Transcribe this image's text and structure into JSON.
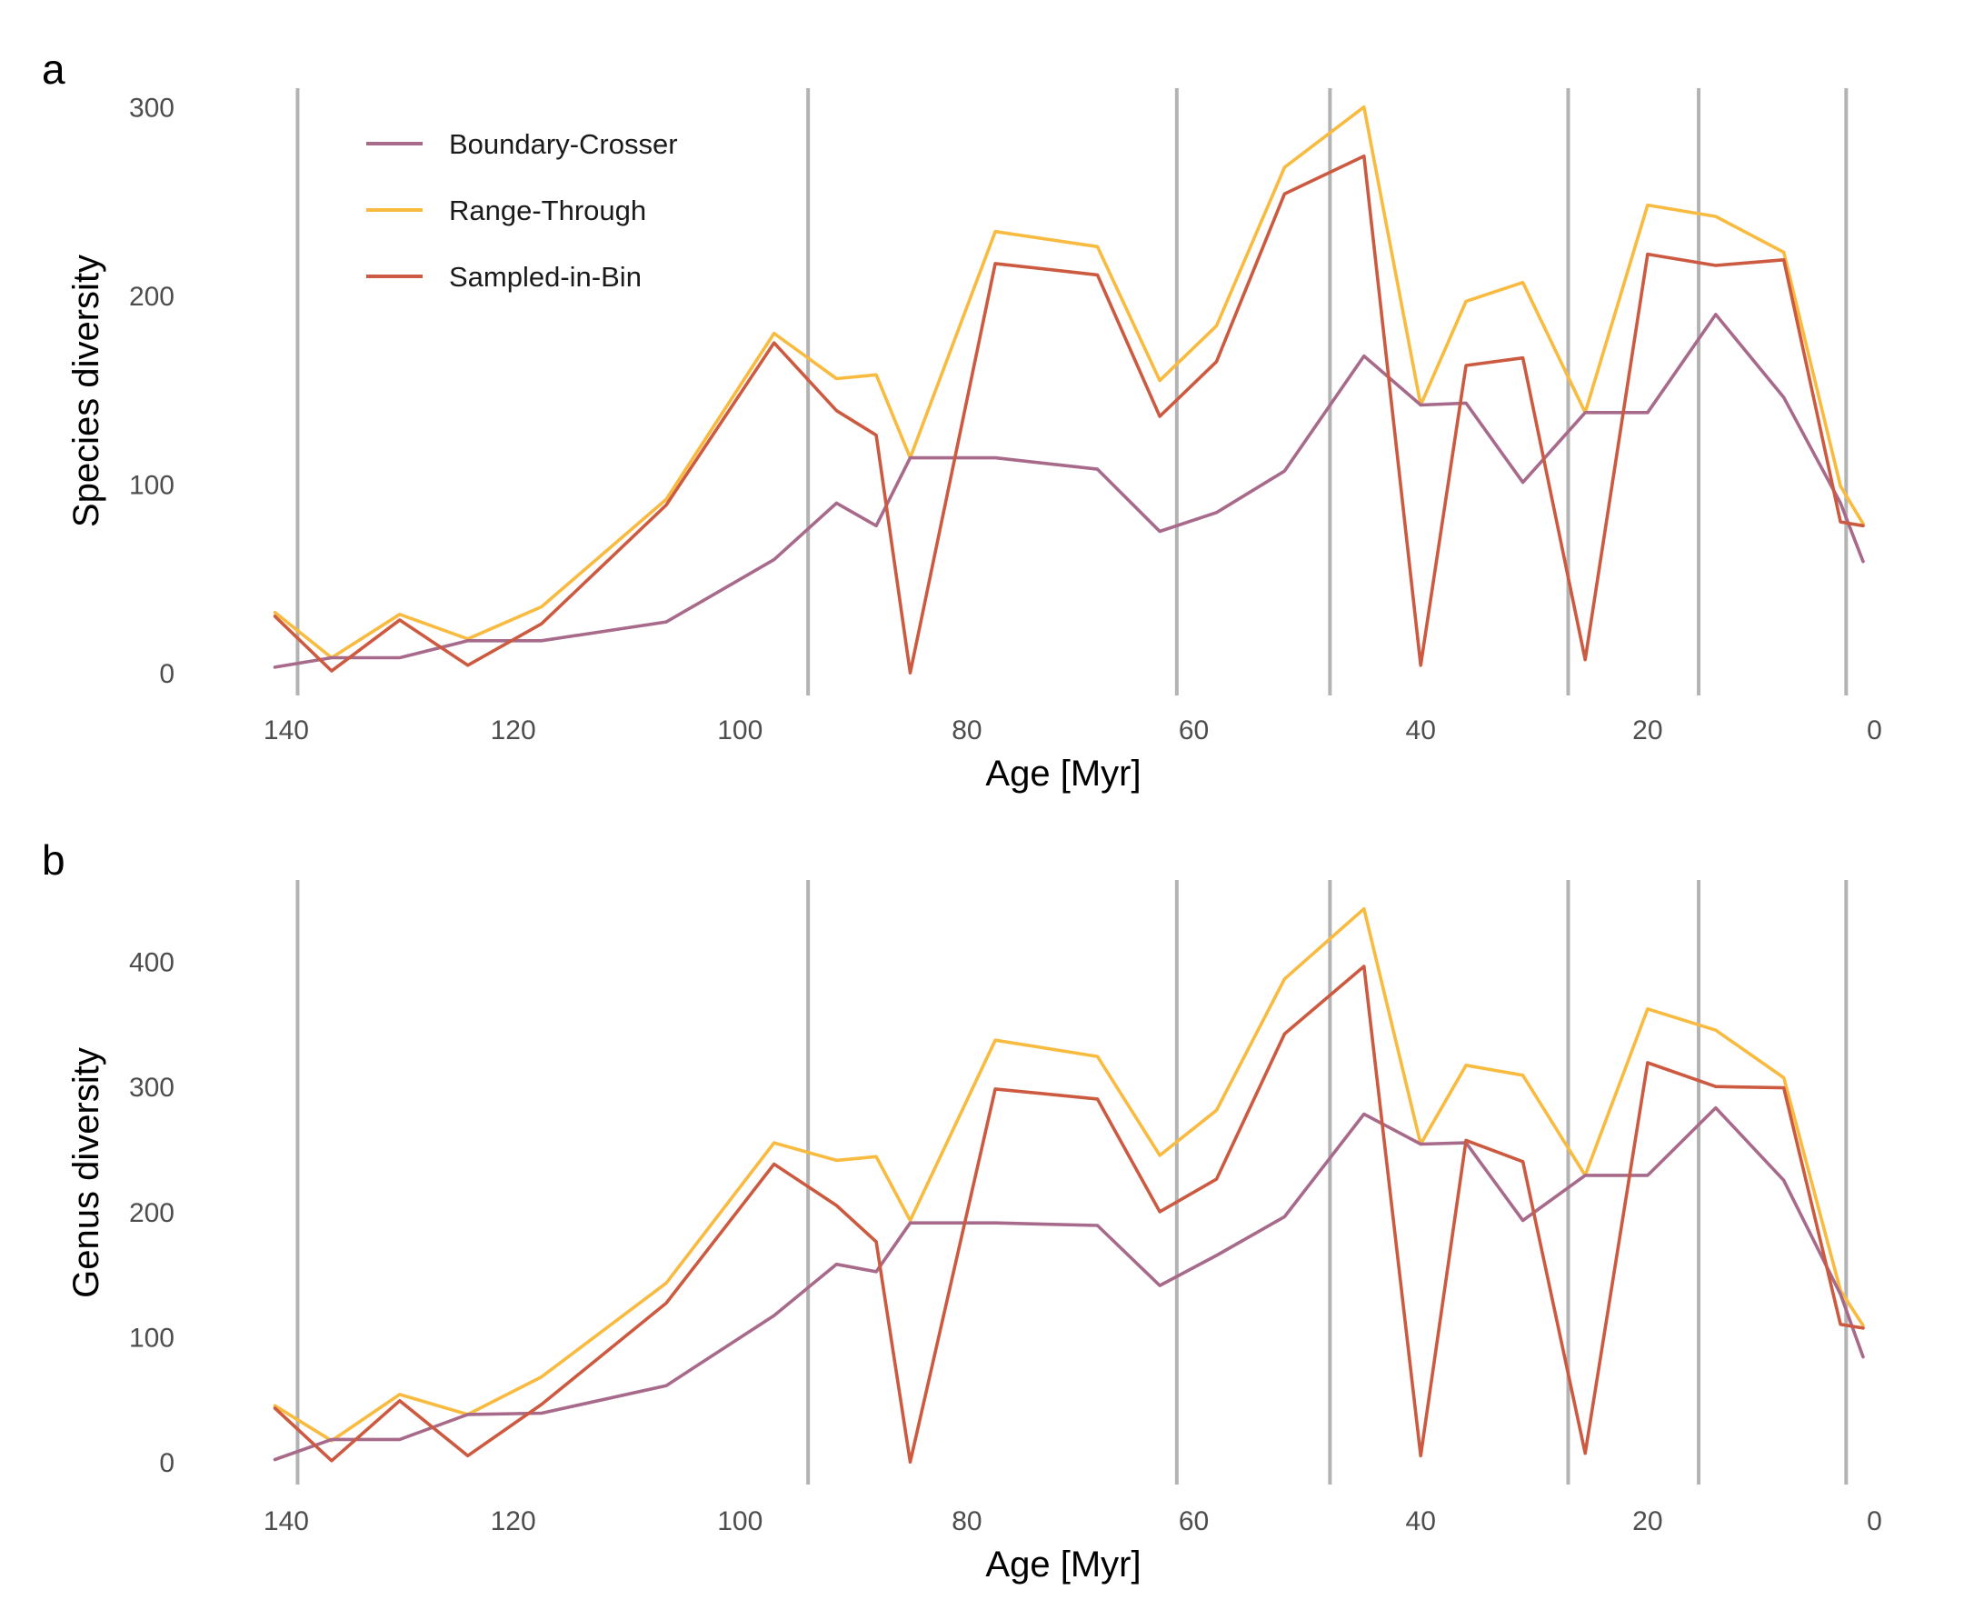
{
  "colors": {
    "boundary_crosser": "#a86a8a",
    "range_through": "#f8bb3f",
    "sampled_in_bin": "#cc5a40",
    "boundary_lines": "#b3b3b3"
  },
  "legend": [
    {
      "key": "bc",
      "label": "Boundary-Crosser"
    },
    {
      "key": "rt",
      "label": "Range-Through"
    },
    {
      "key": "sib",
      "label": "Sampled-in-Bin"
    }
  ],
  "chart_data": [
    {
      "type": "line",
      "panel_label": "a",
      "xlabel": "Age [Myr]",
      "ylabel": "Species diversity",
      "xlim": [
        142,
        -1
      ],
      "ylim": [
        -12,
        310
      ],
      "x_ticks": [
        140,
        120,
        100,
        80,
        60,
        40,
        20,
        0
      ],
      "y_ticks": [
        0,
        100,
        200,
        300
      ],
      "vertical_boundaries": [
        139,
        94,
        61.5,
        48,
        27,
        15.5,
        2.5
      ],
      "legend_position": "top-left",
      "grid": false,
      "x": [
        141,
        136,
        130,
        124,
        117.5,
        106.5,
        97,
        91.5,
        88,
        85,
        77.5,
        68.5,
        63,
        58,
        52,
        45,
        40,
        36,
        31,
        25.5,
        20,
        14,
        8,
        3,
        1
      ],
      "series": [
        {
          "name": "Boundary-Crosser",
          "key": "bc",
          "values": [
            3,
            8,
            8,
            17,
            17,
            27,
            60,
            90,
            78,
            114,
            114,
            108,
            75,
            85,
            107,
            168,
            142,
            143,
            101,
            138,
            138,
            190,
            146,
            90,
            59
          ]
        },
        {
          "name": "Range-Through",
          "key": "rt",
          "values": [
            32,
            8,
            31,
            18,
            35,
            92,
            180,
            156,
            158,
            114,
            234,
            226,
            155,
            184,
            268,
            300,
            142,
            197,
            207,
            138,
            248,
            242,
            223,
            99,
            79
          ]
        },
        {
          "name": "Sampled-in-Bin",
          "key": "sib",
          "values": [
            30,
            1,
            28,
            4,
            26,
            89,
            175,
            139,
            126,
            0,
            217,
            211,
            136,
            165,
            254,
            274,
            4,
            163,
            167,
            7,
            222,
            216,
            219,
            80,
            78
          ]
        }
      ]
    },
    {
      "type": "line",
      "panel_label": "b",
      "xlabel": "Age [Myr]",
      "ylabel": "Genus diversity",
      "xlim": [
        142,
        -1
      ],
      "ylim": [
        -18,
        465
      ],
      "x_ticks": [
        140,
        120,
        100,
        80,
        60,
        40,
        20,
        0
      ],
      "y_ticks": [
        0,
        100,
        200,
        300,
        400
      ],
      "vertical_boundaries": [
        139,
        94,
        61.5,
        48,
        27,
        15.5,
        2.5
      ],
      "grid": false,
      "x": [
        141,
        136,
        130,
        124,
        117.5,
        106.5,
        97,
        91.5,
        88,
        85,
        77.5,
        68.5,
        63,
        58,
        52,
        45,
        40,
        36,
        31,
        25.5,
        20,
        14,
        8,
        3,
        1
      ],
      "series": [
        {
          "name": "Boundary-Crosser",
          "key": "bc",
          "values": [
            2,
            18,
            18,
            38,
            39,
            61,
            117,
            158,
            152,
            191,
            191,
            189,
            141,
            165,
            196,
            278,
            254,
            255,
            193,
            229,
            229,
            283,
            225,
            134,
            84
          ]
        },
        {
          "name": "Range-Through",
          "key": "rt",
          "values": [
            45,
            17,
            54,
            38,
            68,
            143,
            255,
            241,
            244,
            193,
            337,
            324,
            245,
            281,
            386,
            442,
            254,
            317,
            309,
            229,
            362,
            345,
            307,
            137,
            109
          ]
        },
        {
          "name": "Sampled-in-Bin",
          "key": "sib",
          "values": [
            43,
            1,
            49,
            5,
            46,
            127,
            238,
            205,
            176,
            0,
            298,
            290,
            200,
            226,
            342,
            396,
            5,
            257,
            240,
            7,
            319,
            300,
            299,
            110,
            107
          ]
        }
      ]
    }
  ]
}
